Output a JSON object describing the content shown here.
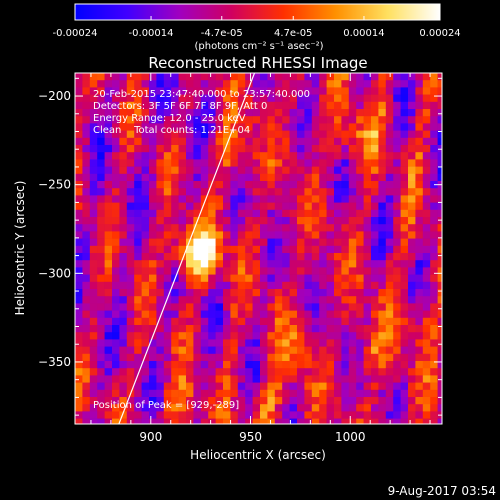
{
  "colorbar": {
    "tick_labels": [
      "-0.00024",
      "-0.00014",
      "-4.7e-05",
      "4.7e-05",
      "0.00014",
      "0.00024"
    ],
    "tick_values": [
      -0.00024,
      -0.00014,
      -4.7e-05,
      4.7e-05,
      0.00014,
      0.00024
    ],
    "range": [
      -0.00024,
      0.00024
    ],
    "unit_label": "(photons cm⁻² s⁻¹ asec⁻²)",
    "colormap": [
      "#0000ff",
      "#4000ff",
      "#a000c0",
      "#d00060",
      "#ff3000",
      "#ff9000",
      "#ffe060",
      "#ffffff"
    ]
  },
  "plot": {
    "title": "Reconstructed RHESSI Image",
    "info_lines": [
      "20-Feb-2015 23:47:40.000 to 23:57:40.000",
      "Detectors: 3F 5F 6F 7F 8F 9F, Att 0",
      "Energy Range: 12.0 - 25.0 keV",
      "Clean    Total counts: 1.21E+04"
    ],
    "peak_label": "Position of Peak = [929,-289]"
  },
  "footer": {
    "timestamp": "9-Aug-2017 03:54"
  },
  "chart_data": {
    "type": "heatmap",
    "title": "Reconstructed RHESSI Image",
    "xlabel": "Heliocentric X (arcsec)",
    "ylabel": "Heliocentric Y (arcsec)",
    "xlim": [
      862,
      1046
    ],
    "ylim": [
      -385,
      -187
    ],
    "x_ticks": [
      900,
      950,
      1000
    ],
    "y_ticks": [
      -200,
      -250,
      -300,
      -350
    ],
    "color_range": [
      -0.00024,
      0.00024
    ],
    "peak": {
      "x": 929,
      "y": -289,
      "label": "Position of Peak = [929,-289]"
    },
    "limb_line": {
      "x": [
        884,
        952
      ],
      "y": [
        -385,
        -187
      ]
    },
    "hotspots": [
      {
        "x": 927,
        "y": -289,
        "value": 0.00024
      },
      {
        "x": 916,
        "y": -286,
        "value": 0.00018
      },
      {
        "x": 940,
        "y": -232,
        "value": 0.00012
      },
      {
        "x": 1000,
        "y": -223,
        "value": 0.00012
      },
      {
        "x": 915,
        "y": -375,
        "value": 0.00013
      },
      {
        "x": 972,
        "y": -340,
        "value": 9e-05
      },
      {
        "x": 1010,
        "y": -345,
        "value": 9e-05
      },
      {
        "x": 1032,
        "y": -325,
        "value": 7e-05
      },
      {
        "x": 958,
        "y": -372,
        "value": 0.0001
      }
    ]
  }
}
